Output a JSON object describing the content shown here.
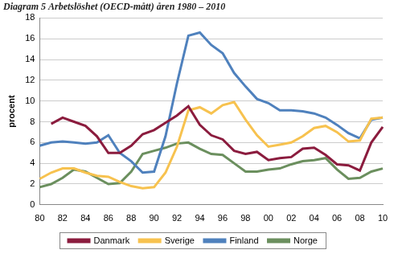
{
  "chart_data": {
    "type": "line",
    "title": "Diagram 5 Arbetslöshet (OECD-mått) åren 1980 – 2010",
    "y_label": "procent",
    "categories": [
      "80",
      null,
      "82",
      null,
      "84",
      null,
      "86",
      null,
      "88",
      null,
      "90",
      null,
      "92",
      null,
      "94",
      null,
      "96",
      null,
      "98",
      null,
      "00",
      null,
      "02",
      null,
      "04",
      null,
      "06",
      null,
      "08",
      null,
      "10"
    ],
    "series": [
      {
        "name": "Danmark",
        "color": "#8b1c3e",
        "values": [
          null,
          7.8,
          8.4,
          8.0,
          7.6,
          6.6,
          5.0,
          5.0,
          5.7,
          6.8,
          7.2,
          7.9,
          8.6,
          9.5,
          7.7,
          6.7,
          6.3,
          5.2,
          4.9,
          5.1,
          4.3,
          4.5,
          4.6,
          5.4,
          5.5,
          4.8,
          3.9,
          3.8,
          3.3,
          6.0,
          7.5
        ]
      },
      {
        "name": "Sverige",
        "color": "#f7c24f",
        "values": [
          2.5,
          3.1,
          3.5,
          3.5,
          3.1,
          2.8,
          2.7,
          2.2,
          1.8,
          1.6,
          1.7,
          3.1,
          5.6,
          9.1,
          9.4,
          8.8,
          9.6,
          9.9,
          8.2,
          6.7,
          5.6,
          5.8,
          6.0,
          6.6,
          7.4,
          7.6,
          7.0,
          6.1,
          6.2,
          8.3,
          8.4
        ]
      },
      {
        "name": "Finland",
        "color": "#4f81bd",
        "values": [
          5.7,
          6.0,
          6.1,
          6.0,
          5.9,
          6.0,
          6.7,
          5.0,
          4.2,
          3.1,
          3.2,
          6.6,
          11.7,
          16.3,
          16.6,
          15.4,
          14.6,
          12.7,
          11.4,
          10.2,
          9.8,
          9.1,
          9.1,
          9.0,
          8.8,
          8.4,
          7.7,
          6.9,
          6.4,
          8.2,
          8.4
        ]
      },
      {
        "name": "Norge",
        "color": "#6b8f5e",
        "values": [
          1.7,
          2.0,
          2.6,
          3.4,
          3.2,
          2.6,
          2.0,
          2.1,
          3.2,
          4.9,
          5.2,
          5.5,
          5.9,
          6.0,
          5.4,
          4.9,
          4.8,
          4.0,
          3.2,
          3.2,
          3.4,
          3.5,
          3.9,
          4.2,
          4.3,
          4.5,
          3.4,
          2.5,
          2.6,
          3.2,
          3.5
        ]
      }
    ],
    "ylim": [
      0,
      18
    ],
    "yticks": [
      0,
      2,
      4,
      6,
      8,
      10,
      12,
      14,
      16,
      18
    ],
    "grid": true,
    "legend": "bottom"
  }
}
